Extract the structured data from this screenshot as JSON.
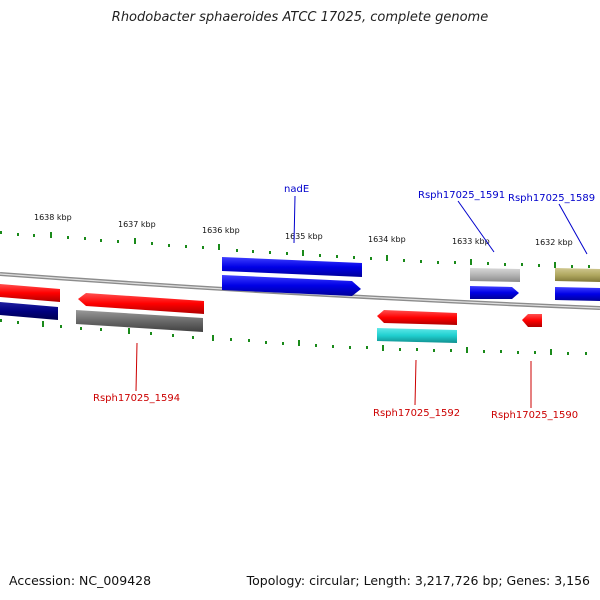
{
  "title": "Rhodobacter sphaeroides ATCC 17025, complete genome",
  "footer": {
    "accession": "Accession: NC_009428",
    "summary": "Topology: circular; Length: 3,217,726 bp; Genes: 3,156"
  },
  "ruler": [
    "1638 kbp",
    "1637 kbp",
    "1636 kbp",
    "1635 kbp",
    "1634 kbp",
    "1633 kbp",
    "1632 kbp"
  ],
  "gene_labels": {
    "nadE": "nadE",
    "g1591": "Rsph17025_1591",
    "g1589": "Rsph17025_1589",
    "g1594": "Rsph17025_1594",
    "g1592": "Rsph17025_1592",
    "g1590": "Rsph17025_1590"
  },
  "colors": {
    "red": "#ff0000",
    "blue": "#0000e6",
    "navy": "#000080",
    "gray": "#707070",
    "lightgray": "#b4b4b4",
    "cyan": "#20d0d0",
    "olive": "#b0a860",
    "tick": "#1a8a1a",
    "backbone": "#8c8c8c"
  }
}
